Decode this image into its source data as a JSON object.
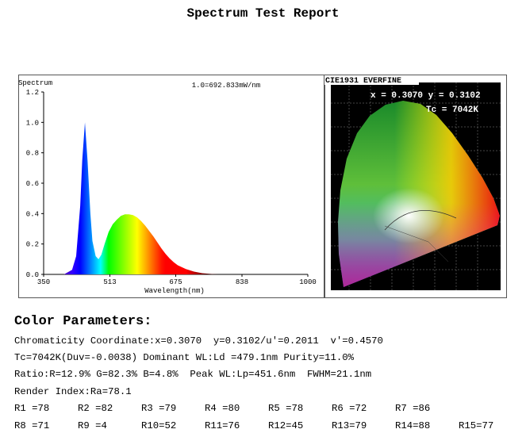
{
  "title": "Spectrum Test Report",
  "chart_data": {
    "type": "area",
    "title": "Spectrum",
    "annotation": "1.0=692.833mW/nm",
    "x_label": "Wavelength(nm)",
    "x": [
      400,
      420,
      430,
      440,
      445,
      451.6,
      458,
      465,
      470,
      478,
      485,
      492,
      500,
      510,
      520,
      530,
      540,
      550,
      560,
      570,
      580,
      590,
      600,
      610,
      620,
      630,
      640,
      650,
      660,
      670,
      680,
      700,
      720,
      740,
      760,
      780
    ],
    "values": [
      0,
      0.03,
      0.12,
      0.45,
      0.75,
      1.0,
      0.75,
      0.4,
      0.22,
      0.12,
      0.1,
      0.13,
      0.2,
      0.28,
      0.33,
      0.36,
      0.385,
      0.395,
      0.395,
      0.39,
      0.375,
      0.35,
      0.32,
      0.285,
      0.25,
      0.21,
      0.17,
      0.135,
      0.105,
      0.08,
      0.06,
      0.035,
      0.018,
      0.008,
      0.003,
      0
    ],
    "xlim": [
      350,
      1000
    ],
    "xticks": [
      350,
      513,
      675,
      838,
      1000
    ],
    "ylim": [
      0,
      1.2
    ],
    "yticks": [
      {
        "value": 0,
        "label": "0.0"
      },
      0.2,
      0.4,
      0.6,
      0.8,
      {
        "value": 1,
        "label": "1.0"
      },
      1.2
    ]
  },
  "cie": {
    "title": "CIE1931 EVERFINE",
    "coordinates": "x = 0.3070 y = 0.3102",
    "cct": "Tc = 7042K"
  },
  "color_parameters": {
    "heading": "Color Parameters:",
    "lines": [
      "Chromaticity Coordinate:x=0.3070  y=0.3102/u'=0.2011  v'=0.4570",
      "Tc=7042K(Duv=-0.0038) Dominant WL:Ld =479.1nm Purity=11.0%",
      "Ratio:R=12.9% G=82.3% B=4.8%  Peak WL:Lp=451.6nm  FWHM=21.1nm",
      "Render Index:Ra=78.1"
    ],
    "render_indices": [
      [
        "R1 =78",
        "R2 =82",
        "R3 =79",
        "R4 =80",
        "R5 =78",
        "R6 =72",
        "R7 =86"
      ],
      [
        "R8 =71",
        "R9 =4",
        "R10=52",
        "R11=76",
        "R12=45",
        "R13=79",
        "R14=88",
        "R15=77"
      ]
    ]
  }
}
